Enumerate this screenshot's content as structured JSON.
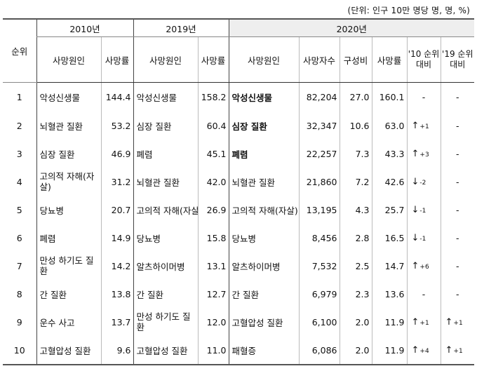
{
  "unit_note": "(단위: 인구 10만 명당 명, 명, %)",
  "headers": {
    "rank": "순위",
    "year2010": "2010년",
    "year2019": "2019년",
    "year2020": "2020년",
    "cause": "사망원인",
    "rate": "사망률",
    "deaths": "사망자수",
    "share": "구성비",
    "rank_change_2010": "'10 순위 대비",
    "rank_change_2019": "'19 순위 대비"
  },
  "rows": [
    {
      "rank": "1",
      "cause2010": "악성신생물",
      "rate2010": "144.4",
      "cause2019": "악성신생물",
      "rate2019": "158.2",
      "cause2020": "악성신생물",
      "deaths2020": "82,204",
      "share2020": "27.0",
      "rate2020": "160.1",
      "chg10": {
        "arrow": "",
        "val": "",
        "dash": "-"
      },
      "chg19": {
        "arrow": "",
        "val": "",
        "dash": "-"
      }
    },
    {
      "rank": "2",
      "cause2010": "뇌혈관 질환",
      "rate2010": "53.2",
      "cause2019": "심장 질환",
      "rate2019": "60.4",
      "cause2020": "심장 질환",
      "deaths2020": "32,347",
      "share2020": "10.6",
      "rate2020": "63.0",
      "chg10": {
        "arrow": "↑",
        "val": "+1",
        "dash": ""
      },
      "chg19": {
        "arrow": "",
        "val": "",
        "dash": "-"
      }
    },
    {
      "rank": "3",
      "cause2010": "심장 질환",
      "rate2010": "46.9",
      "cause2019": "폐렴",
      "rate2019": "45.1",
      "cause2020": "폐렴",
      "deaths2020": "22,257",
      "share2020": "7.3",
      "rate2020": "43.3",
      "chg10": {
        "arrow": "↑",
        "val": "+3",
        "dash": ""
      },
      "chg19": {
        "arrow": "",
        "val": "",
        "dash": "-"
      }
    },
    {
      "rank": "4",
      "cause2010": "고의적 자해(자살)",
      "rate2010": "31.2",
      "cause2019": "뇌혈관 질환",
      "rate2019": "42.0",
      "cause2020": "뇌혈관 질환",
      "deaths2020": "21,860",
      "share2020": "7.2",
      "rate2020": "42.6",
      "chg10": {
        "arrow": "↓",
        "val": "-2",
        "dash": ""
      },
      "chg19": {
        "arrow": "",
        "val": "",
        "dash": "-"
      }
    },
    {
      "rank": "5",
      "cause2010": "당뇨병",
      "rate2010": "20.7",
      "cause2019": "고의적 자해(자살)",
      "rate2019": "26.9",
      "cause2020": "고의적 자해(자살)",
      "deaths2020": "13,195",
      "share2020": "4.3",
      "rate2020": "25.7",
      "chg10": {
        "arrow": "↓",
        "val": "-1",
        "dash": ""
      },
      "chg19": {
        "arrow": "",
        "val": "",
        "dash": "-"
      }
    },
    {
      "rank": "6",
      "cause2010": "폐렴",
      "rate2010": "14.9",
      "cause2019": "당뇨병",
      "rate2019": "15.8",
      "cause2020": "당뇨병",
      "deaths2020": "8,456",
      "share2020": "2.8",
      "rate2020": "16.5",
      "chg10": {
        "arrow": "↓",
        "val": "-1",
        "dash": ""
      },
      "chg19": {
        "arrow": "",
        "val": "",
        "dash": "-"
      }
    },
    {
      "rank": "7",
      "cause2010": "만성 하기도 질환",
      "rate2010": "14.2",
      "cause2019": "알츠하이머병",
      "rate2019": "13.1",
      "cause2020": "알츠하이머병",
      "deaths2020": "7,532",
      "share2020": "2.5",
      "rate2020": "14.7",
      "chg10": {
        "arrow": "↑",
        "val": "+6",
        "dash": ""
      },
      "chg19": {
        "arrow": "",
        "val": "",
        "dash": "-"
      }
    },
    {
      "rank": "8",
      "cause2010": "간 질환",
      "rate2010": "13.8",
      "cause2019": "간 질환",
      "rate2019": "12.7",
      "cause2020": "간 질환",
      "deaths2020": "6,979",
      "share2020": "2.3",
      "rate2020": "13.6",
      "chg10": {
        "arrow": "",
        "val": "",
        "dash": "-"
      },
      "chg19": {
        "arrow": "",
        "val": "",
        "dash": "-"
      }
    },
    {
      "rank": "9",
      "cause2010": "운수 사고",
      "rate2010": "13.7",
      "cause2019": "만성 하기도 질환",
      "rate2019": "12.0",
      "cause2020": "고혈압성 질환",
      "deaths2020": "6,100",
      "share2020": "2.0",
      "rate2020": "11.9",
      "chg10": {
        "arrow": "↑",
        "val": "+1",
        "dash": ""
      },
      "chg19": {
        "arrow": "↑",
        "val": "+1",
        "dash": ""
      }
    },
    {
      "rank": "10",
      "cause2010": "고혈압성 질환",
      "rate2010": "9.6",
      "cause2019": "고혈압성 질환",
      "rate2019": "11.0",
      "cause2020": "패혈증",
      "deaths2020": "6,086",
      "share2020": "2.0",
      "rate2020": "11.9",
      "chg10": {
        "arrow": "↑",
        "val": "+4",
        "dash": ""
      },
      "chg19": {
        "arrow": "↑",
        "val": "+1",
        "dash": ""
      }
    }
  ]
}
